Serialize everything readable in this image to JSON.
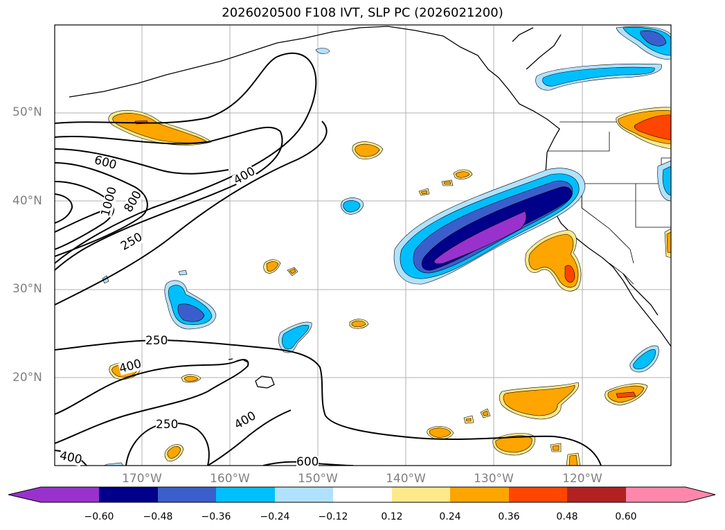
{
  "title": "2026020500 F108 IVT, SLP PC (2026021200)",
  "map": {
    "lat_labels": [
      "50°N",
      "40°N",
      "30°N",
      "20°N"
    ],
    "lon_labels": [
      "170°W",
      "160°W",
      "150°W",
      "140°W",
      "130°W",
      "120°W"
    ],
    "contour_labels": [
      "600",
      "1000",
      "800",
      "400",
      "250",
      "250",
      "400",
      "250",
      "400",
      "400",
      "600"
    ]
  },
  "colorbar": {
    "ticks": [
      "−0.60",
      "−0.48",
      "−0.36",
      "−0.24",
      "−0.12",
      "0.12",
      "0.24",
      "0.36",
      "0.48",
      "0.60"
    ],
    "colors": [
      "#9932cc",
      "#00008b",
      "#3a5fcd",
      "#00bfff",
      "#b0e2ff",
      "#ffffff",
      "#ffe98a",
      "#ffa500",
      "#ff4500",
      "#b22222",
      "#ff87ab"
    ]
  }
}
